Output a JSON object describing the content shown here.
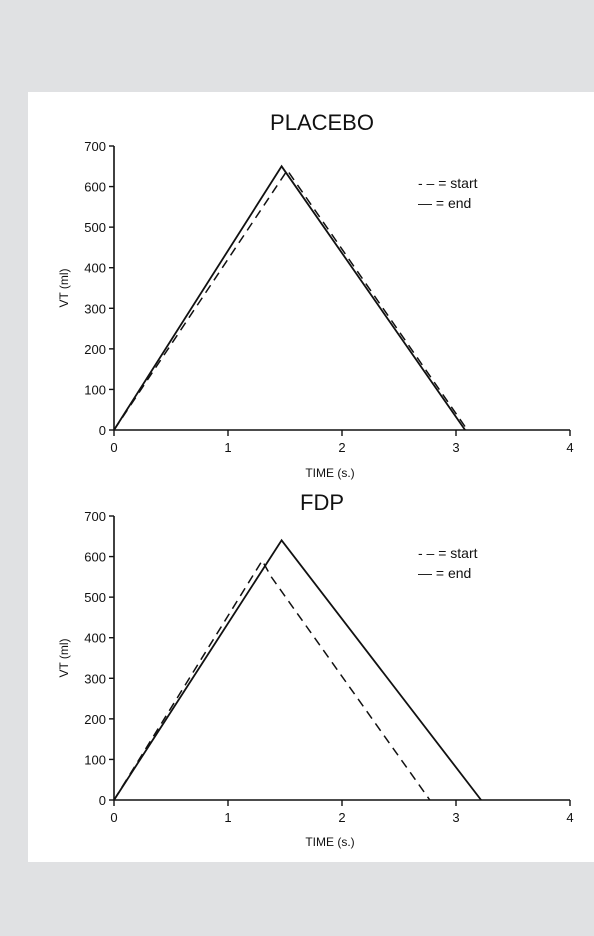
{
  "chart_data": [
    {
      "type": "line",
      "title": "PLACEBO",
      "xlabel": "TIME (s.)",
      "ylabel": "VT (ml)",
      "xlim": [
        0,
        4
      ],
      "ylim": [
        0,
        700
      ],
      "xticks": [
        0,
        1,
        2,
        3,
        4
      ],
      "yticks": [
        0,
        100,
        200,
        300,
        400,
        500,
        600,
        700
      ],
      "legend": {
        "position": "top-right",
        "entries": [
          {
            "symbol": "dashed",
            "label": "- – = start"
          },
          {
            "symbol": "solid",
            "label": "— = end"
          }
        ]
      },
      "series": [
        {
          "name": "start",
          "style": "dashed",
          "x": [
            0,
            1.52,
            3.1
          ],
          "y": [
            0,
            640,
            0
          ]
        },
        {
          "name": "end",
          "style": "solid",
          "x": [
            0,
            1.47,
            3.08
          ],
          "y": [
            0,
            650,
            0
          ]
        }
      ]
    },
    {
      "type": "line",
      "title": "FDP",
      "xlabel": "TIME (s.)",
      "ylabel": "VT (ml)",
      "xlim": [
        0,
        4
      ],
      "ylim": [
        0,
        700
      ],
      "xticks": [
        0,
        1,
        2,
        3,
        4
      ],
      "yticks": [
        0,
        100,
        200,
        300,
        400,
        500,
        600,
        700
      ],
      "legend": {
        "position": "top-right",
        "entries": [
          {
            "symbol": "dashed",
            "label": "- – = start"
          },
          {
            "symbol": "solid",
            "label": "— = end"
          }
        ]
      },
      "series": [
        {
          "name": "start",
          "style": "dashed",
          "x": [
            0,
            1.3,
            1.38,
            2.77
          ],
          "y": [
            0,
            590,
            550,
            0
          ]
        },
        {
          "name": "end",
          "style": "solid",
          "x": [
            0,
            1.47,
            3.22
          ],
          "y": [
            0,
            640,
            0
          ]
        }
      ]
    }
  ]
}
